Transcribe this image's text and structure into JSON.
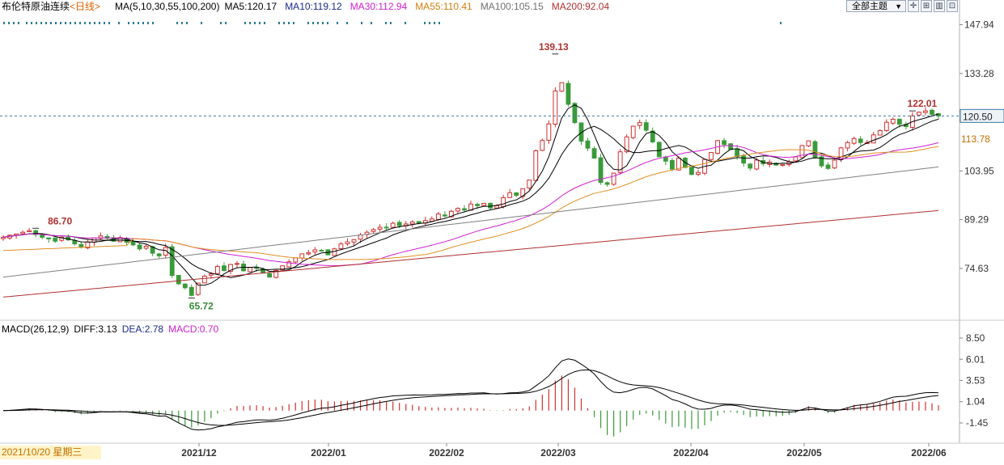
{
  "header": {
    "instrument": "布伦特原油连续",
    "period": "<日线>",
    "ma_label": "MA(5,10,30,55,100,200)",
    "ma5": "MA5:120.17",
    "ma10": "MA10:119.12",
    "ma30": "MA30:112.94",
    "ma55": "MA55:110.41",
    "ma100": "MA100:105.15",
    "ma200": "MA200:92.04"
  },
  "toolbar": {
    "theme_label": "全部主题"
  },
  "macd_header": {
    "label": "MACD(26,12,9)",
    "diff": "DIFF:3.13",
    "dea": "DEA:2.78",
    "macd": "MACD:0.70"
  },
  "cursor_date": "2021/10/20 星期三",
  "colors": {
    "up": "#d03030",
    "down": "#3a9a3a",
    "ma5": "#000000",
    "ma10": "#000000",
    "ma30": "#d020d0",
    "ma55": "#e09020",
    "ma100": "#808080",
    "ma200": "#b03030",
    "diff": "#000000",
    "dea": "#000000",
    "price_label": "#b03030",
    "low_label": "#3a8a3a"
  },
  "chart_data": {
    "type": "candlestick",
    "price_axis": {
      "ticks": [
        {
          "label": "147.94",
          "value": 147.94
        },
        {
          "label": "133.28",
          "value": 133.28
        },
        {
          "label": "103.95",
          "value": 103.95
        },
        {
          "label": "89.29",
          "value": 89.29
        },
        {
          "label": "74.63",
          "value": 74.63
        }
      ],
      "range": [
        60,
        151
      ]
    },
    "time_axis": [
      "2021/12",
      "2022/01",
      "2022/02",
      "2022/03",
      "2022/04",
      "2022/05",
      "2022/06"
    ],
    "annotations": [
      {
        "label": "139.13",
        "type": "high",
        "value": 139.13
      },
      {
        "label": "86.70",
        "type": "high",
        "value": 86.7
      },
      {
        "label": "65.72",
        "type": "low",
        "value": 65.72
      },
      {
        "label": "122.01",
        "type": "high",
        "value": 122.01
      }
    ],
    "current_price": {
      "label": "120.50",
      "value": 120.5
    },
    "ma_price_tag": {
      "label": "113.78",
      "value": 113.78
    },
    "close_series": [
      84.0,
      84.6,
      85.0,
      85.5,
      86.0,
      84.8,
      84.0,
      83.5,
      82.8,
      84.0,
      83.2,
      82.0,
      81.0,
      82.6,
      83.8,
      84.4,
      83.7,
      82.8,
      83.9,
      82.5,
      81.7,
      80.5,
      81.3,
      79.2,
      78.4,
      80.9,
      72.5,
      70.0,
      68.8,
      66.5,
      70.2,
      72.3,
      73.0,
      75.2,
      74.0,
      75.8,
      76.1,
      73.9,
      74.9,
      74.6,
      73.2,
      72.0,
      74.0,
      75.4,
      76.6,
      77.8,
      79.0,
      79.3,
      80.2,
      80.0,
      78.7,
      80.5,
      82.0,
      82.6,
      83.3,
      84.7,
      85.5,
      86.3,
      87.0,
      86.8,
      88.2,
      87.5,
      88.0,
      88.6,
      88.3,
      89.0,
      89.5,
      91.0,
      90.4,
      91.8,
      92.7,
      92.2,
      94.0,
      93.5,
      94.2,
      92.8,
      93.5,
      95.9,
      97.4,
      96.6,
      98.6,
      101.2,
      110.0,
      113.1,
      118.1,
      128.0,
      130.5,
      124.0,
      118.5,
      112.9,
      110.8,
      107.8,
      100.5,
      99.9,
      103.3,
      109.7,
      114.2,
      117.4,
      118.5,
      116.2,
      112.7,
      108.2,
      106.9,
      104.5,
      107.8,
      105.0,
      102.9,
      103.5,
      107.4,
      109.5,
      113.1,
      111.9,
      110.4,
      108.3,
      106.3,
      104.8,
      107.2,
      106.1,
      106.6,
      105.7,
      105.9,
      106.7,
      108.2,
      111.6,
      113.0,
      108.0,
      105.5,
      104.7,
      107.2,
      110.9,
      112.5,
      113.7,
      112.5,
      112.4,
      114.8,
      116.1,
      118.6,
      119.5,
      118.0,
      117.3,
      120.5,
      121.6,
      122.0,
      121.0,
      120.5
    ],
    "macd": {
      "ticks": [
        {
          "label": "8.50",
          "value": 8.5
        },
        {
          "label": "6.01",
          "value": 6.01
        },
        {
          "label": "3.53",
          "value": 3.53
        },
        {
          "label": "1.04",
          "value": 1.04
        },
        {
          "label": "-1.45",
          "value": -1.45
        }
      ],
      "diff": 3.13,
      "dea": 2.78,
      "histogram": 0.7
    }
  }
}
